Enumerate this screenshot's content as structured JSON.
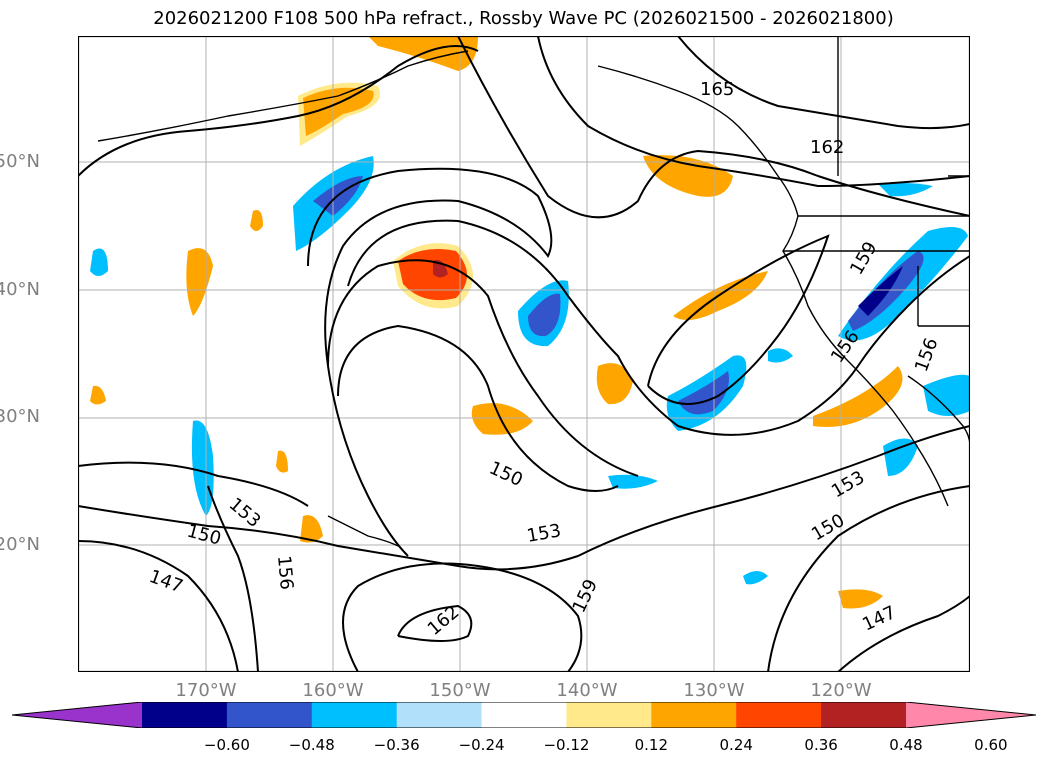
{
  "title": "2026021200 F108 500 hPa refract., Rossby Wave PC (2026021500 - 2026021800)",
  "lat_ticks": [
    "50°N",
    "40°N",
    "30°N",
    "20°N"
  ],
  "lon_ticks": [
    "170°W",
    "160°W",
    "150°W",
    "140°W",
    "130°W",
    "120°W"
  ],
  "contour_labels": [
    "165",
    "162",
    "159",
    "156",
    "156",
    "156",
    "153",
    "153",
    "153",
    "150",
    "150",
    "150",
    "147",
    "147",
    "159",
    "162"
  ],
  "colorbar": {
    "labels": [
      "−0.60",
      "−0.48",
      "−0.36",
      "−0.24",
      "−0.12",
      "0.12",
      "0.24",
      "0.36",
      "0.48",
      "0.60"
    ],
    "colors": [
      "#9933cc",
      "#00008b",
      "#3355cc",
      "#00bfff",
      "#b0e0fa",
      "#ffffff",
      "#ffe98a",
      "#ffa500",
      "#ff4500",
      "#b22222",
      "#ff88aa"
    ]
  },
  "colors": {
    "contour": "#000000",
    "coast": "#000000",
    "grid": "#b0b0b0",
    "tick_text": "#808080"
  }
}
